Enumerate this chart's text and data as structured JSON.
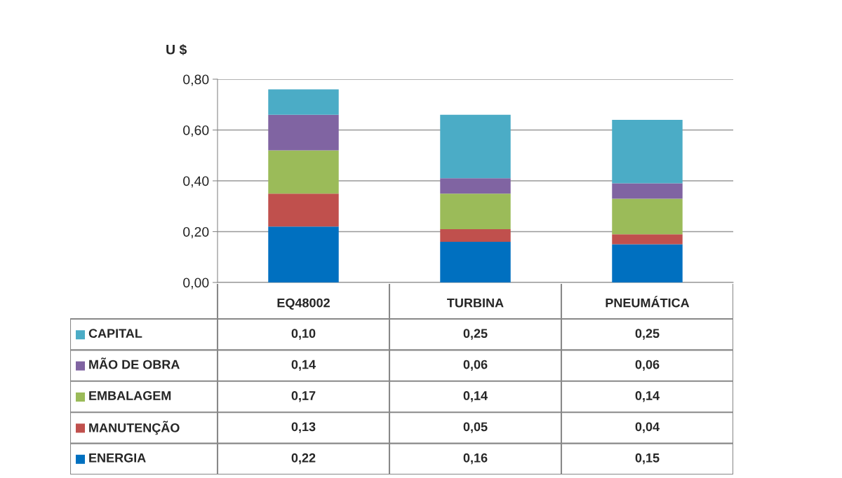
{
  "chart_data": {
    "type": "bar",
    "stacked": true,
    "ylabel": "U $",
    "categories": [
      "EQ48002",
      "TURBINA",
      "PNEUMÁTICA"
    ],
    "series": [
      {
        "name": "ENERGIA",
        "color": "#0070c0",
        "values": [
          0.22,
          0.16,
          0.15
        ],
        "value_labels": [
          "0,22",
          "0,16",
          "0,15"
        ]
      },
      {
        "name": "MANUTENÇÃO",
        "color": "#c0504d",
        "values": [
          0.13,
          0.05,
          0.04
        ],
        "value_labels": [
          "0,13",
          "0,05",
          "0,04"
        ]
      },
      {
        "name": "EMBALAGEM",
        "color": "#9bbb59",
        "values": [
          0.17,
          0.14,
          0.14
        ],
        "value_labels": [
          "0,17",
          "0,14",
          "0,14"
        ]
      },
      {
        "name": "MÃO DE OBRA",
        "color": "#8064a2",
        "values": [
          0.14,
          0.06,
          0.06
        ],
        "value_labels": [
          "0,14",
          "0,06",
          "0,06"
        ]
      },
      {
        "name": "CAPITAL",
        "color": "#4bacc6",
        "values": [
          0.1,
          0.25,
          0.25
        ],
        "value_labels": [
          "0,10",
          "0,25",
          "0,25"
        ]
      }
    ],
    "ylim": [
      0,
      0.8
    ],
    "yticks": [
      {
        "value": 0,
        "label": "0,00"
      },
      {
        "value": 0.2,
        "label": "0,20"
      },
      {
        "value": 0.4,
        "label": "0,40"
      },
      {
        "value": 0.6,
        "label": "0,60"
      },
      {
        "value": 0.8,
        "label": "0,80"
      }
    ],
    "grid": "y",
    "legend": "bottom"
  }
}
